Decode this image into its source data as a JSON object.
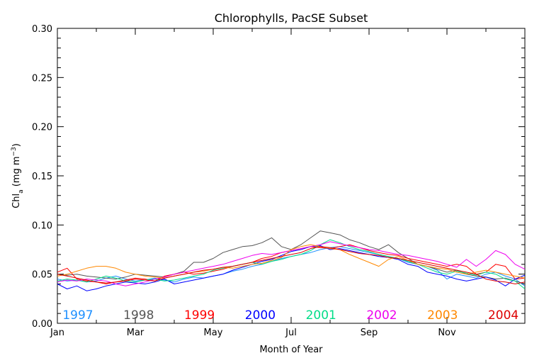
{
  "chart_data": {
    "type": "line",
    "title": "Chlorophylls, PacSE Subset",
    "xlabel": "Month of Year",
    "ylabel_main": "Chl",
    "ylabel_sub": "a",
    "ylabel_unit_pre": " (mg m",
    "ylabel_unit_sup": "−3",
    "ylabel_unit_post": ")",
    "x_unit": "month",
    "xlim": [
      1,
      13
    ],
    "ylim": [
      0,
      0.3
    ],
    "grid": false,
    "legend_placement": "bottom",
    "xticks": [
      {
        "value": 1,
        "label": "Jan"
      },
      {
        "value": 3,
        "label": "Mar"
      },
      {
        "value": 5,
        "label": "May"
      },
      {
        "value": 7,
        "label": "Jul"
      },
      {
        "value": 9,
        "label": "Sep"
      },
      {
        "value": 11,
        "label": "Nov"
      }
    ],
    "yticks": [
      {
        "value": 0.0,
        "label": "0.00"
      },
      {
        "value": 0.05,
        "label": "0.05"
      },
      {
        "value": 0.1,
        "label": "0.10"
      },
      {
        "value": 0.15,
        "label": "0.15"
      },
      {
        "value": 0.2,
        "label": "0.20"
      },
      {
        "value": 0.25,
        "label": "0.25"
      },
      {
        "value": 0.3,
        "label": "0.30"
      }
    ],
    "x": [
      1.0,
      1.25,
      1.5,
      1.75,
      2.0,
      2.25,
      2.5,
      2.75,
      3.0,
      3.25,
      3.5,
      3.75,
      4.0,
      4.25,
      4.5,
      4.75,
      5.0,
      5.25,
      5.5,
      5.75,
      6.0,
      6.25,
      6.5,
      6.75,
      7.0,
      7.25,
      7.5,
      7.75,
      8.0,
      8.25,
      8.5,
      8.75,
      9.0,
      9.25,
      9.5,
      9.75,
      10.0,
      10.25,
      10.5,
      10.75,
      11.0,
      11.25,
      11.5,
      11.75,
      12.0,
      12.25,
      12.5,
      12.75,
      13.0
    ],
    "series": [
      {
        "name": "1997",
        "color": "#1e90ff",
        "values": [
          0.045,
          0.043,
          0.044,
          0.042,
          0.043,
          0.046,
          0.048,
          0.045,
          0.043,
          0.044,
          0.046,
          0.044,
          0.042,
          0.045,
          0.047,
          0.046,
          0.048,
          0.05,
          0.053,
          0.055,
          0.058,
          0.06,
          0.063,
          0.066,
          0.068,
          0.07,
          0.072,
          0.075,
          0.077,
          0.078,
          0.076,
          0.074,
          0.072,
          0.07,
          0.068,
          0.066,
          0.062,
          0.06,
          0.058,
          0.054,
          0.045,
          0.05,
          0.048,
          0.046,
          0.05,
          0.052,
          0.048,
          0.045,
          0.038
        ]
      },
      {
        "name": "1998",
        "color": "#555555",
        "values": [
          0.05,
          0.049,
          0.05,
          0.048,
          0.047,
          0.046,
          0.045,
          0.047,
          0.05,
          0.049,
          0.048,
          0.047,
          0.05,
          0.053,
          0.062,
          0.062,
          0.066,
          0.072,
          0.075,
          0.078,
          0.079,
          0.082,
          0.087,
          0.078,
          0.075,
          0.08,
          0.087,
          0.094,
          0.092,
          0.09,
          0.085,
          0.082,
          0.078,
          0.075,
          0.08,
          0.072,
          0.066,
          0.06,
          0.058,
          0.055,
          0.052,
          0.054,
          0.05,
          0.048,
          0.047,
          0.045,
          0.046,
          0.043,
          0.04
        ]
      },
      {
        "name": "1999",
        "color": "#ff0000",
        "values": [
          0.052,
          0.056,
          0.045,
          0.043,
          0.042,
          0.04,
          0.042,
          0.044,
          0.046,
          0.045,
          0.043,
          0.048,
          0.05,
          0.052,
          0.05,
          0.051,
          0.053,
          0.055,
          0.058,
          0.06,
          0.062,
          0.066,
          0.068,
          0.072,
          0.074,
          0.076,
          0.078,
          0.077,
          0.076,
          0.078,
          0.08,
          0.077,
          0.074,
          0.072,
          0.07,
          0.069,
          0.066,
          0.064,
          0.062,
          0.06,
          0.058,
          0.06,
          0.058,
          0.05,
          0.052,
          0.06,
          0.058,
          0.045,
          0.046
        ]
      },
      {
        "name": "2000",
        "color": "#0000ff",
        "values": [
          0.04,
          0.035,
          0.038,
          0.033,
          0.035,
          0.038,
          0.04,
          0.042,
          0.041,
          0.04,
          0.042,
          0.045,
          0.04,
          0.042,
          0.044,
          0.046,
          0.048,
          0.05,
          0.054,
          0.057,
          0.06,
          0.063,
          0.065,
          0.069,
          0.073,
          0.075,
          0.078,
          0.079,
          0.075,
          0.076,
          0.074,
          0.072,
          0.07,
          0.068,
          0.067,
          0.065,
          0.06,
          0.058,
          0.052,
          0.05,
          0.048,
          0.045,
          0.043,
          0.045,
          0.047,
          0.044,
          0.038,
          0.045,
          0.049
        ]
      },
      {
        "name": "2001",
        "color": "#00dd88",
        "values": [
          0.043,
          0.045,
          0.044,
          0.042,
          0.045,
          0.048,
          0.046,
          0.043,
          0.042,
          0.044,
          0.045,
          0.043,
          0.044,
          0.046,
          0.048,
          0.05,
          0.054,
          0.056,
          0.058,
          0.06,
          0.062,
          0.06,
          0.063,
          0.065,
          0.068,
          0.07,
          0.074,
          0.08,
          0.085,
          0.082,
          0.078,
          0.075,
          0.073,
          0.07,
          0.068,
          0.066,
          0.063,
          0.06,
          0.056,
          0.052,
          0.05,
          0.053,
          0.051,
          0.049,
          0.052,
          0.05,
          0.045,
          0.043,
          0.035
        ]
      },
      {
        "name": "2002",
        "color": "#ee00ee",
        "values": [
          0.042,
          0.044,
          0.043,
          0.045,
          0.044,
          0.043,
          0.04,
          0.038,
          0.04,
          0.042,
          0.045,
          0.047,
          0.05,
          0.052,
          0.054,
          0.056,
          0.058,
          0.06,
          0.063,
          0.066,
          0.069,
          0.071,
          0.07,
          0.072,
          0.074,
          0.076,
          0.078,
          0.08,
          0.083,
          0.081,
          0.079,
          0.077,
          0.075,
          0.074,
          0.072,
          0.07,
          0.069,
          0.067,
          0.065,
          0.063,
          0.06,
          0.057,
          0.065,
          0.058,
          0.065,
          0.074,
          0.07,
          0.06,
          0.055
        ]
      },
      {
        "name": "2003",
        "color": "#ff8800",
        "values": [
          0.048,
          0.05,
          0.053,
          0.056,
          0.058,
          0.058,
          0.056,
          0.052,
          0.05,
          0.048,
          0.047,
          0.046,
          0.048,
          0.05,
          0.052,
          0.053,
          0.055,
          0.057,
          0.056,
          0.058,
          0.06,
          0.061,
          0.064,
          0.067,
          0.075,
          0.078,
          0.08,
          0.078,
          0.076,
          0.075,
          0.07,
          0.066,
          0.062,
          0.058,
          0.065,
          0.068,
          0.064,
          0.06,
          0.058,
          0.056,
          0.055,
          0.052,
          0.05,
          0.052,
          0.054,
          0.052,
          0.05,
          0.048,
          0.046
        ]
      },
      {
        "name": "2004",
        "color": "#dd0000",
        "values": [
          0.05,
          0.048,
          0.046,
          0.044,
          0.042,
          0.041,
          0.042,
          0.043,
          0.045,
          0.044,
          0.043,
          0.046,
          0.048,
          0.05,
          0.052,
          0.054,
          0.055,
          0.057,
          0.058,
          0.06,
          0.062,
          0.064,
          0.066,
          0.068,
          0.07,
          0.072,
          0.076,
          0.078,
          0.077,
          0.075,
          0.073,
          0.071,
          0.07,
          0.069,
          0.067,
          0.066,
          0.064,
          0.062,
          0.06,
          0.058,
          0.056,
          0.054,
          0.052,
          0.05,
          0.045,
          0.043,
          0.042,
          0.04,
          0.042
        ]
      }
    ]
  }
}
